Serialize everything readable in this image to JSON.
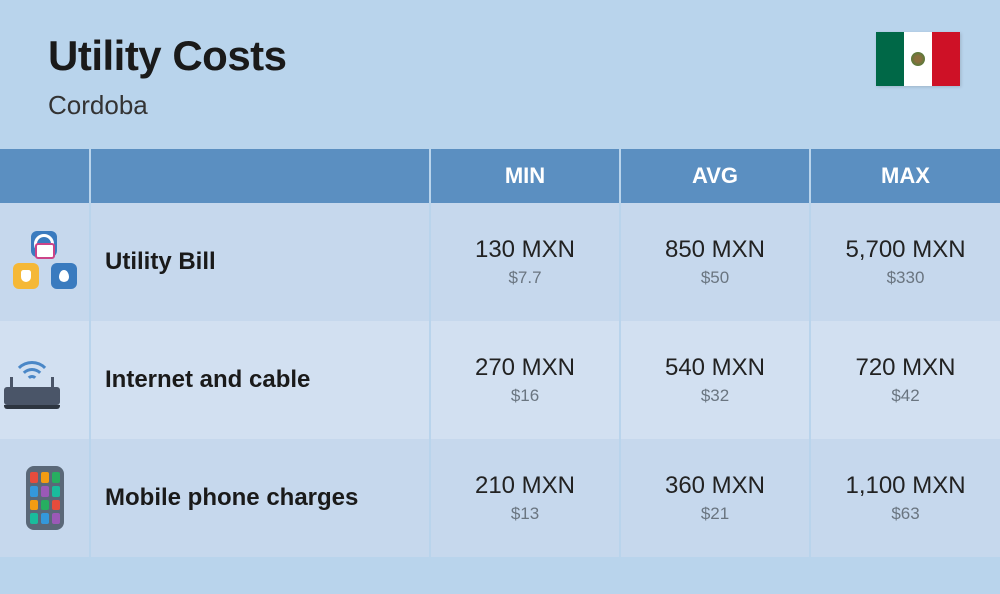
{
  "header": {
    "title": "Utility Costs",
    "subtitle": "Cordoba",
    "flag": {
      "country": "Mexico",
      "colors": [
        "#006847",
        "#ffffff",
        "#ce1126"
      ]
    }
  },
  "table": {
    "columns": [
      "MIN",
      "AVG",
      "MAX"
    ],
    "rows": [
      {
        "icon": "utility-bill-icon",
        "label": "Utility Bill",
        "min_primary": "130 MXN",
        "min_secondary": "$7.7",
        "avg_primary": "850 MXN",
        "avg_secondary": "$50",
        "max_primary": "5,700 MXN",
        "max_secondary": "$330"
      },
      {
        "icon": "router-icon",
        "label": "Internet and cable",
        "min_primary": "270 MXN",
        "min_secondary": "$16",
        "avg_primary": "540 MXN",
        "avg_secondary": "$32",
        "max_primary": "720 MXN",
        "max_secondary": "$42"
      },
      {
        "icon": "phone-icon",
        "label": "Mobile phone charges",
        "min_primary": "210 MXN",
        "min_secondary": "$13",
        "avg_primary": "360 MXN",
        "avg_secondary": "$21",
        "max_primary": "1,100 MXN",
        "max_secondary": "$63"
      }
    ]
  },
  "style": {
    "page_bg": "#b9d4ec",
    "header_row_bg": "#5b8fc1",
    "header_row_text": "#ffffff",
    "row_alt_bg": "#c6d8ed",
    "row_base_bg": "#d2e0f1",
    "primary_text": "#222222",
    "secondary_text": "#6a7580",
    "title_fontsize": 42,
    "subtitle_fontsize": 26,
    "column_header_fontsize": 22,
    "label_fontsize": 24,
    "primary_value_fontsize": 24,
    "secondary_value_fontsize": 17
  }
}
